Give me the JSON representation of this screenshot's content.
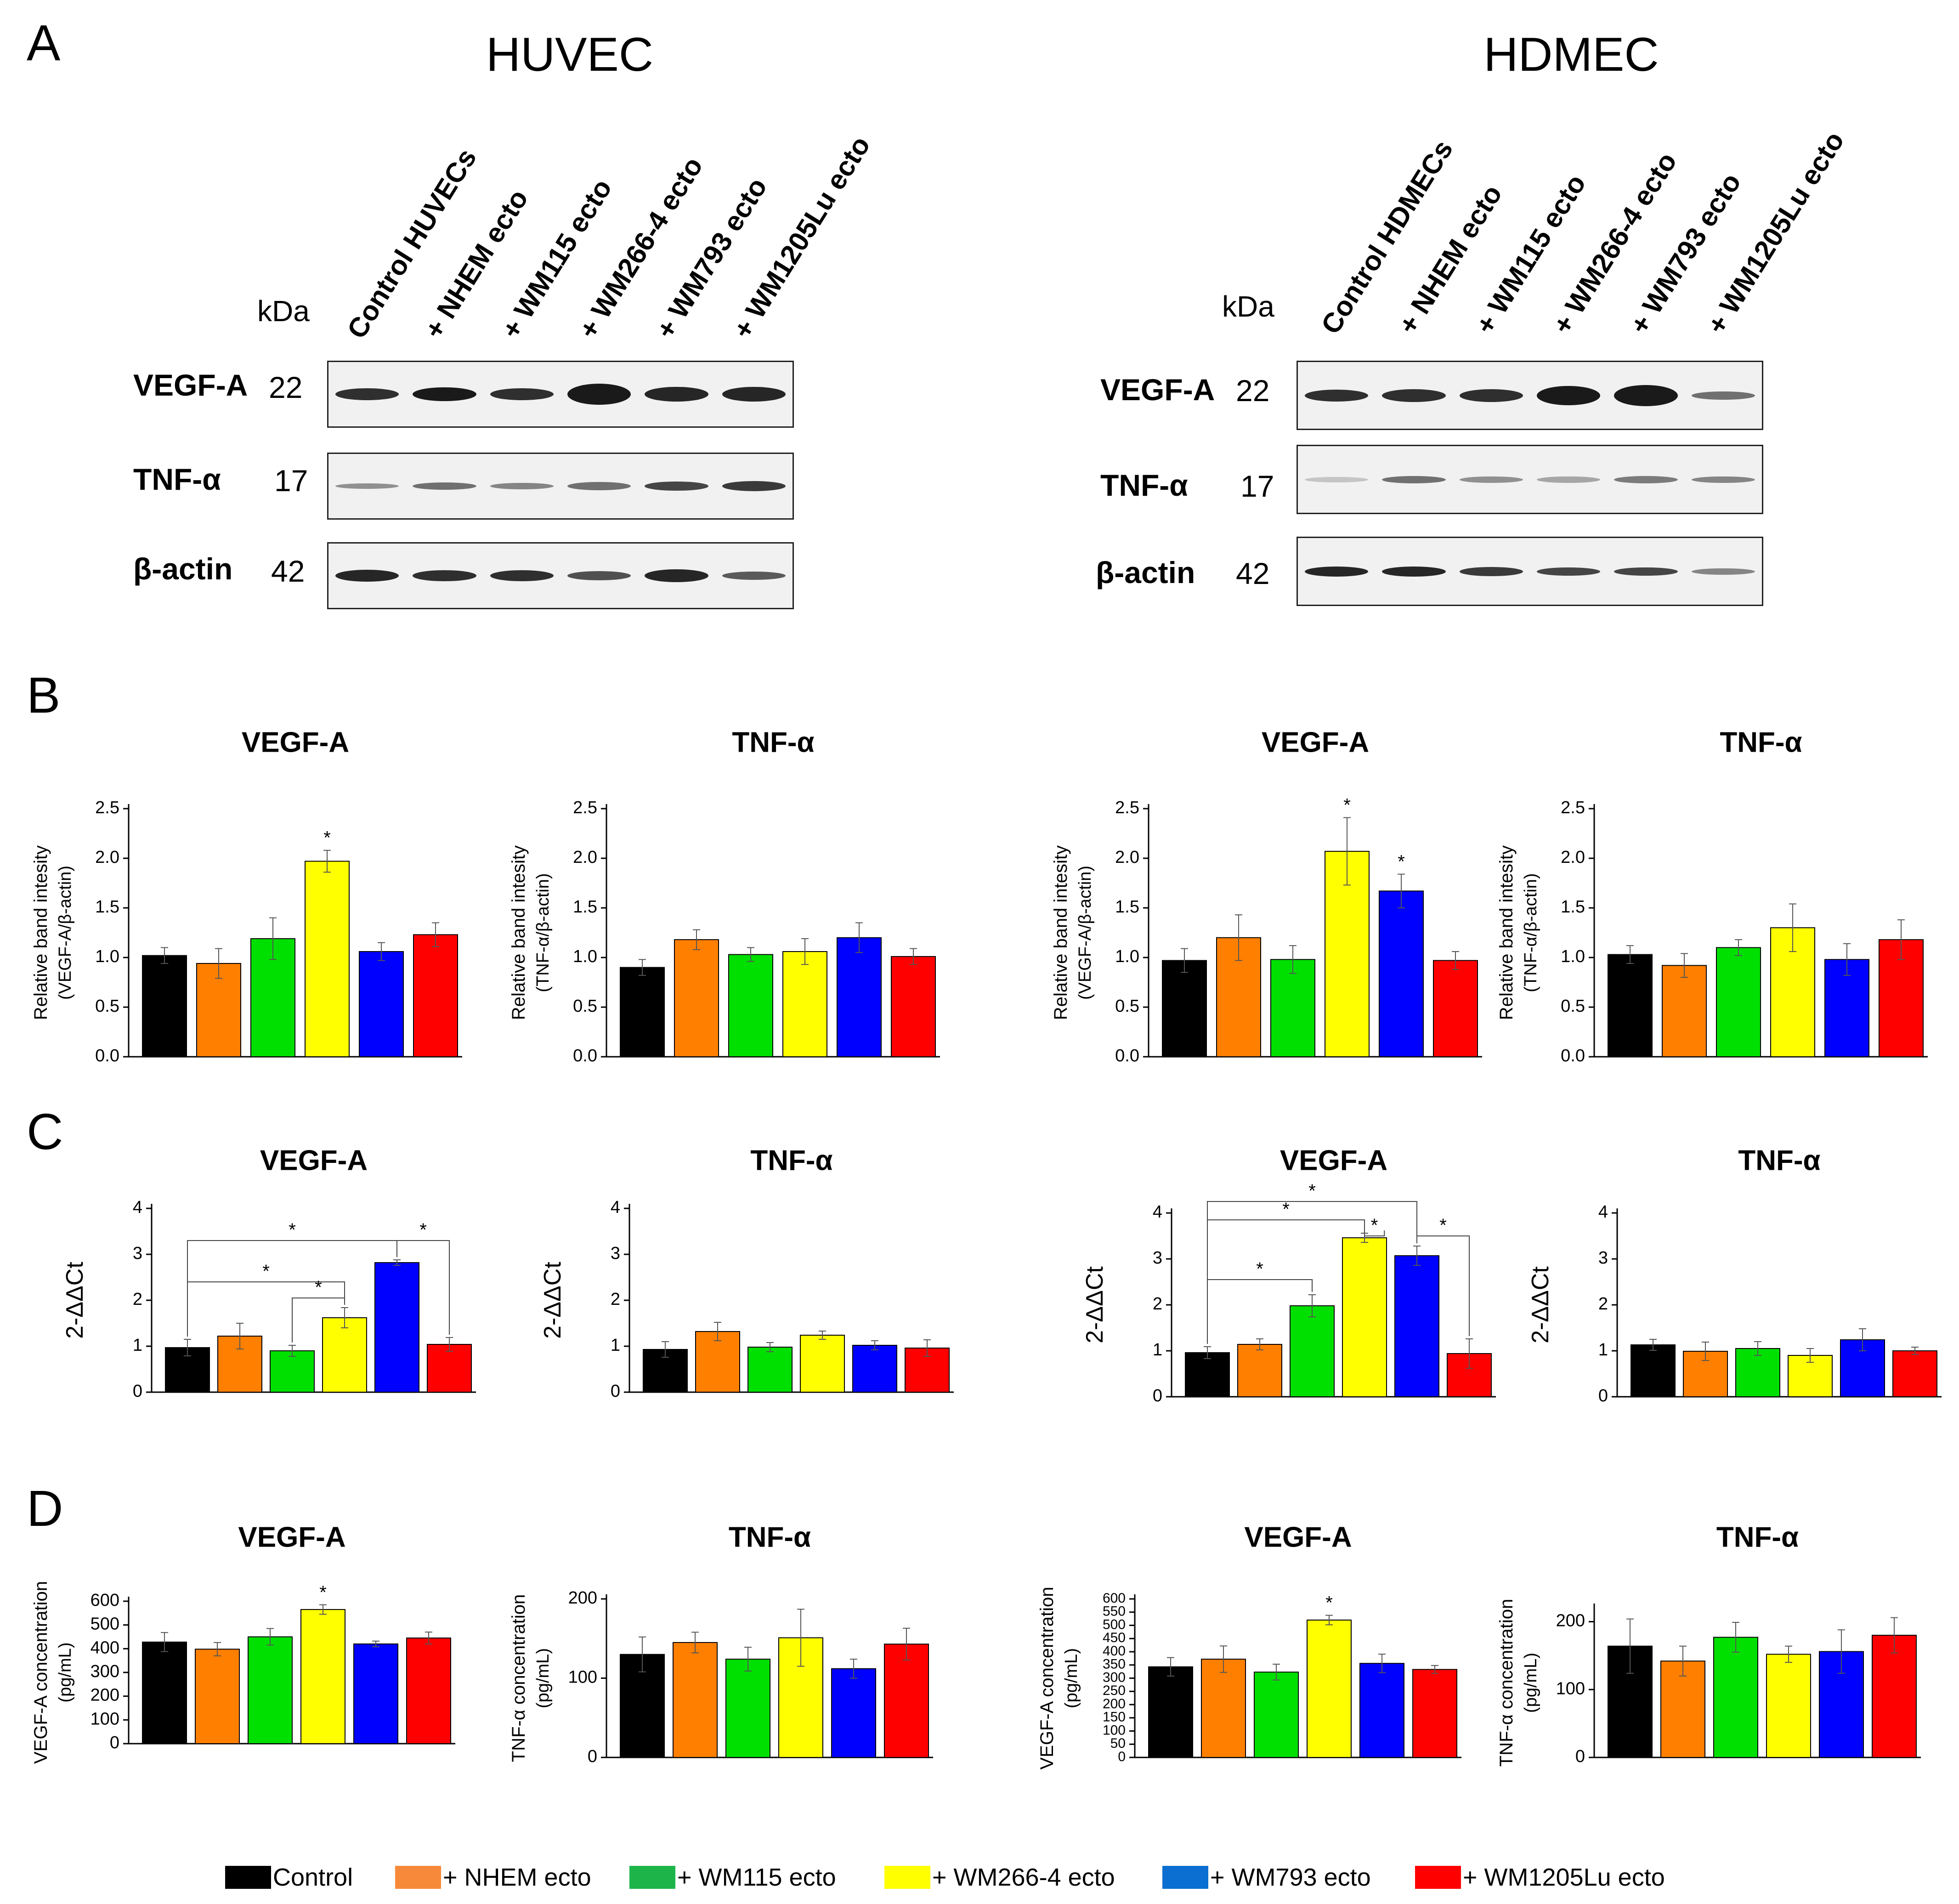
{
  "panel_labels": {
    "a": "A",
    "b": "B",
    "c": "C",
    "d": "D"
  },
  "kda_label": "kDa",
  "huvec": {
    "title": "HUVEC",
    "lanes": [
      "Control HUVECs",
      "+ NHEM ecto",
      "+ WM115 ecto",
      "+ WM266-4 ecto",
      "+ WM793 ecto",
      "+ WM1205Lu ecto"
    ],
    "blots": [
      {
        "protein": "VEGF-A",
        "mw": "22"
      },
      {
        "protein": "TNF-α",
        "mw": "17"
      },
      {
        "protein": "β-actin",
        "mw": "42"
      }
    ]
  },
  "hdmec": {
    "title": "HDMEC",
    "lanes": [
      "Control HDMECs",
      "+ NHEM ecto",
      "+ WM115 ecto",
      "+ WM266-4 ecto",
      "+ WM793 ecto",
      "+ WM1205Lu ecto"
    ],
    "blots": [
      {
        "protein": "VEGF-A",
        "mw": "22"
      },
      {
        "protein": "TNF-α",
        "mw": "17"
      },
      {
        "protein": "β-actin",
        "mw": "42"
      }
    ]
  },
  "colors": [
    "#000000",
    "#ff7f00",
    "#00e000",
    "#ffff00",
    "#0000ff",
    "#ff0000"
  ],
  "legend": {
    "items": [
      "Control",
      "+ NHEM ecto",
      "+ WM115 ecto",
      "+ WM266-4 ecto",
      "+ WM793 ecto",
      "+ WM1205Lu ecto"
    ],
    "colors": [
      "#000000",
      "#f7893a",
      "#1db54a",
      "#ffff00",
      "#0a6fd0",
      "#ff0000"
    ]
  },
  "chart_data": [
    {
      "id": "B-HUVEC-VEGF",
      "type": "bar",
      "title": "VEGF-A",
      "ylabel": "Relative band intesity",
      "ylabel2": "(VEGF-A/β-actin)",
      "ylim": [
        0,
        2.5
      ],
      "yticks": [
        "0.0",
        "0.5",
        "1.0",
        "1.5",
        "2.0",
        "2.5"
      ],
      "categories": [
        "Control",
        "+ NHEM ecto",
        "+ WM115 ecto",
        "+ WM266-4 ecto",
        "+ WM793 ecto",
        "+ WM1205Lu ecto"
      ],
      "values": [
        1.02,
        0.94,
        1.19,
        1.97,
        1.06,
        1.23
      ],
      "errors": [
        0.08,
        0.15,
        0.21,
        0.11,
        0.09,
        0.12
      ],
      "stars": [
        3
      ],
      "star_label": "*"
    },
    {
      "id": "B-HUVEC-TNF",
      "type": "bar",
      "title": "TNF-α",
      "ylabel": "Relative band intesity",
      "ylabel2": "(TNF-α/β-actin)",
      "ylim": [
        0,
        2.5
      ],
      "yticks": [
        "0.0",
        "0.5",
        "1.0",
        "1.5",
        "2.0",
        "2.5"
      ],
      "categories": [
        "Control",
        "+ NHEM ecto",
        "+ WM115 ecto",
        "+ WM266-4 ecto",
        "+ WM793 ecto",
        "+ WM1205Lu ecto"
      ],
      "values": [
        0.9,
        1.18,
        1.03,
        1.06,
        1.2,
        1.01
      ],
      "errors": [
        0.08,
        0.1,
        0.07,
        0.13,
        0.15,
        0.08
      ],
      "stars": [],
      "star_label": "*"
    },
    {
      "id": "B-HDMEC-VEGF",
      "type": "bar",
      "title": "VEGF-A",
      "ylabel": "Relative band intesity",
      "ylabel2": "(VEGF-A/β-actin)",
      "ylim": [
        0,
        2.5
      ],
      "yticks": [
        "0.0",
        "0.5",
        "1.0",
        "1.5",
        "2.0",
        "2.5"
      ],
      "categories": [
        "Control",
        "+ NHEM ecto",
        "+ WM115 ecto",
        "+ WM266-4 ecto",
        "+ WM793 ecto",
        "+ WM1205Lu ecto"
      ],
      "values": [
        0.97,
        1.2,
        0.98,
        2.07,
        1.67,
        0.97
      ],
      "errors": [
        0.12,
        0.23,
        0.14,
        0.34,
        0.17,
        0.09
      ],
      "stars": [
        3,
        4
      ],
      "star_label": "*"
    },
    {
      "id": "B-HDMEC-TNF",
      "type": "bar",
      "title": "TNF-α",
      "ylabel": "Relative band intesity",
      "ylabel2": "(TNF-α/β-actin)",
      "ylim": [
        0,
        2.5
      ],
      "yticks": [
        "0.0",
        "0.5",
        "1.0",
        "1.5",
        "2.0",
        "2.5"
      ],
      "categories": [
        "Control",
        "+ NHEM ecto",
        "+ WM115 ecto",
        "+ WM266-4 ecto",
        "+ WM793 ecto",
        "+ WM1205Lu ecto"
      ],
      "values": [
        1.03,
        0.92,
        1.1,
        1.3,
        0.98,
        1.18
      ],
      "errors": [
        0.09,
        0.12,
        0.08,
        0.24,
        0.16,
        0.2
      ],
      "stars": [],
      "star_label": "*"
    },
    {
      "id": "C-HUVEC-VEGF",
      "type": "bar",
      "title": "VEGF-A",
      "ylabel": "2-ΔΔCt",
      "ylim": [
        0,
        4
      ],
      "yticks": [
        "0",
        "1",
        "2",
        "3",
        "4"
      ],
      "categories": [
        "Control",
        "+ NHEM ecto",
        "+ WM115 ecto",
        "+ WM266-4 ecto",
        "+ WM793 ecto",
        "+ WM1205Lu ecto"
      ],
      "values": [
        0.97,
        1.22,
        0.9,
        1.62,
        2.82,
        1.04
      ],
      "errors": [
        0.18,
        0.28,
        0.12,
        0.22,
        0.06,
        0.15
      ],
      "stars": [],
      "star_label": "*",
      "brackets": [
        {
          "from": 0,
          "to": 4,
          "level": 3.3
        },
        {
          "from": 0,
          "to": 3,
          "level": 2.4
        },
        {
          "from": 2,
          "to": 3,
          "level": 2.05
        },
        {
          "from": 4,
          "to": 5,
          "level": 3.3
        }
      ]
    },
    {
      "id": "C-HUVEC-TNF",
      "type": "bar",
      "title": "TNF-α",
      "ylabel": "2-ΔΔCt",
      "ylim": [
        0,
        4
      ],
      "yticks": [
        "0",
        "1",
        "2",
        "3",
        "4"
      ],
      "categories": [
        "Control",
        "+ NHEM ecto",
        "+ WM115 ecto",
        "+ WM266-4 ecto",
        "+ WM793 ecto",
        "+ WM1205Lu ecto"
      ],
      "values": [
        0.93,
        1.32,
        0.98,
        1.24,
        1.02,
        0.96
      ],
      "errors": [
        0.17,
        0.2,
        0.1,
        0.09,
        0.1,
        0.18
      ],
      "stars": [],
      "star_label": "*"
    },
    {
      "id": "C-HDMEC-VEGF",
      "type": "bar",
      "title": "VEGF-A",
      "ylabel": "2-ΔΔCt",
      "ylim": [
        0,
        4
      ],
      "yticks": [
        "0",
        "1",
        "2",
        "3",
        "4"
      ],
      "categories": [
        "Control",
        "+ NHEM ecto",
        "+ WM115 ecto",
        "+ WM266-4 ecto",
        "+ WM793 ecto",
        "+ WM1205Lu ecto"
      ],
      "values": [
        0.96,
        1.14,
        1.98,
        3.46,
        3.07,
        0.94
      ],
      "errors": [
        0.13,
        0.12,
        0.24,
        0.1,
        0.21,
        0.32
      ],
      "stars": [],
      "star_label": "*",
      "brackets": [
        {
          "from": 0,
          "to": 4,
          "level": 4.25
        },
        {
          "from": 0,
          "to": 3,
          "level": 3.85
        },
        {
          "from": 3,
          "to": 3.35,
          "level": 3.5
        },
        {
          "from": 0,
          "to": 2,
          "level": 2.55
        },
        {
          "from": 4,
          "to": 5,
          "level": 3.5
        }
      ]
    },
    {
      "id": "C-HDMEC-TNF",
      "type": "bar",
      "title": "TNF-α",
      "ylabel": "2-ΔΔCt",
      "ylim": [
        0,
        4
      ],
      "yticks": [
        "0",
        "1",
        "2",
        "3",
        "4"
      ],
      "categories": [
        "Control",
        "+ NHEM ecto",
        "+ WM115 ecto",
        "+ WM266-4 ecto",
        "+ WM793 ecto",
        "+ WM1205Lu ecto"
      ],
      "values": [
        1.13,
        0.99,
        1.05,
        0.9,
        1.24,
        1.0
      ],
      "errors": [
        0.12,
        0.2,
        0.15,
        0.15,
        0.24,
        0.08
      ],
      "stars": [],
      "star_label": "*"
    },
    {
      "id": "D-HUVEC-VEGF",
      "type": "bar",
      "title": "VEGF-A",
      "ylabel": "VEGF-A concentration",
      "ylabel2": "(pg/mL)",
      "ylim": [
        0,
        600
      ],
      "yticks": [
        "0",
        "100",
        "200",
        "300",
        "400",
        "500",
        "600"
      ],
      "categories": [
        "Control",
        "+ NHEM ecto",
        "+ WM115 ecto",
        "+ WM266-4 ecto",
        "+ WM793 ecto",
        "+ WM1205Lu ecto"
      ],
      "values": [
        428,
        398,
        450,
        565,
        420,
        445
      ],
      "errors": [
        40,
        28,
        35,
        20,
        12,
        25
      ],
      "stars": [
        3
      ],
      "star_label": "*"
    },
    {
      "id": "D-HUVEC-TNF",
      "type": "bar",
      "title": "TNF-α",
      "ylabel": "TNF-α concentration",
      "ylabel2": "(pg/mL)",
      "ylim": [
        0,
        200
      ],
      "yticks": [
        "0",
        "100",
        "200"
      ],
      "categories": [
        "Control",
        "+ NHEM ecto",
        "+ WM115 ecto",
        "+ WM266-4 ecto",
        "+ WM793 ecto",
        "+ WM1205Lu ecto"
      ],
      "values": [
        130,
        145,
        124,
        151,
        112,
        143
      ],
      "errors": [
        22,
        13,
        15,
        36,
        12,
        20
      ],
      "stars": [],
      "star_label": "*"
    },
    {
      "id": "D-HDMEC-VEGF",
      "type": "bar",
      "title": "VEGF-A",
      "ylabel": "VEGF-A concentration",
      "ylabel2": "(pg/mL)",
      "ylim": [
        0,
        600
      ],
      "yticks": [
        "0",
        "50",
        "100",
        "150",
        "200",
        "250",
        "300",
        "350",
        "400",
        "450",
        "500",
        "550",
        "600"
      ],
      "categories": [
        "Control",
        "+ NHEM ecto",
        "+ WM115 ecto",
        "+ WM266-4 ecto",
        "+ WM793 ecto",
        "+ WM1205Lu ecto"
      ],
      "values": [
        343,
        372,
        323,
        520,
        356,
        333
      ],
      "errors": [
        35,
        50,
        30,
        18,
        35,
        15
      ],
      "stars": [
        3
      ],
      "star_label": "*"
    },
    {
      "id": "D-HDMEC-TNF",
      "type": "bar",
      "title": "TNF-α",
      "ylabel": "TNF-α concentration",
      "ylabel2": "(pg/mL)",
      "ylim": [
        0,
        220
      ],
      "yticks": [
        "0",
        "100",
        "200"
      ],
      "categories": [
        "Control",
        "+ NHEM ecto",
        "+ WM115 ecto",
        "+ WM266-4 ecto",
        "+ WM793 ecto",
        "+ WM1205Lu ecto"
      ],
      "values": [
        164,
        142,
        177,
        152,
        156,
        180
      ],
      "errors": [
        40,
        22,
        22,
        12,
        32,
        26
      ],
      "stars": [],
      "star_label": "*"
    }
  ]
}
